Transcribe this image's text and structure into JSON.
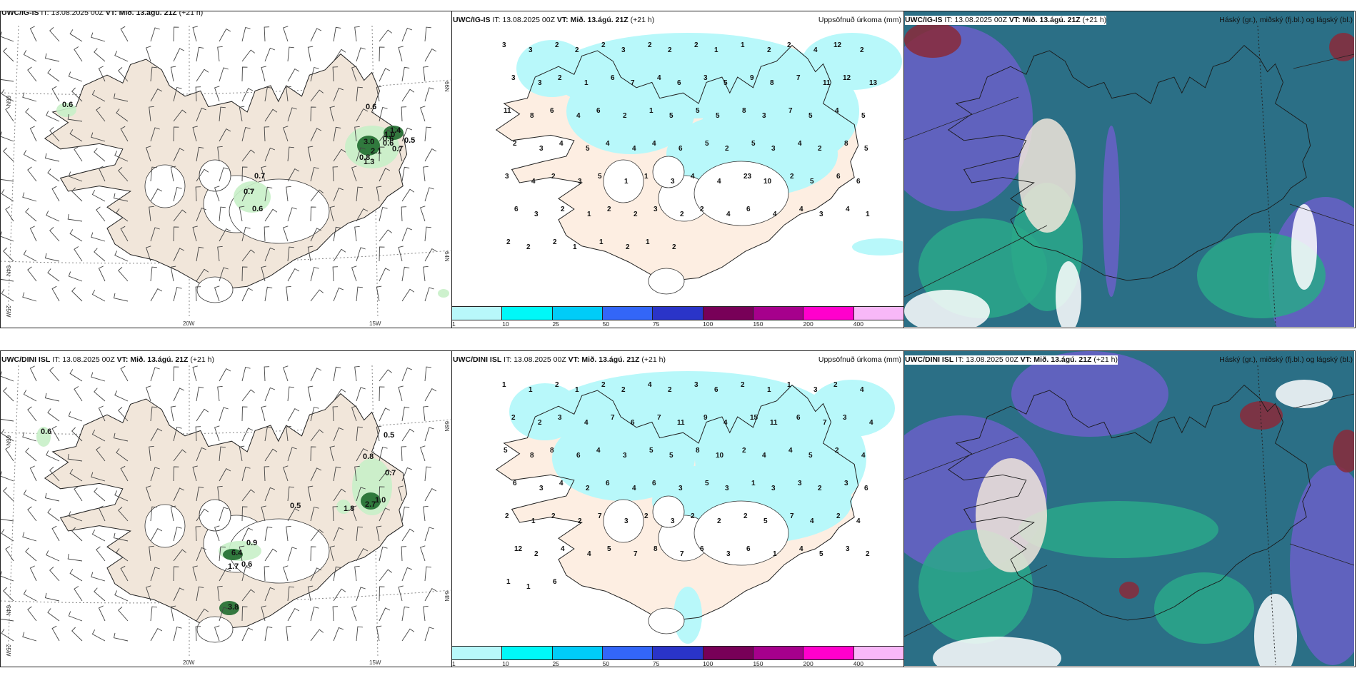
{
  "panels": {
    "p1": {
      "model": "UWC/IG-IS",
      "it_label": "IT:",
      "it_value": "13.08.2025 00Z",
      "vt_label": "VT:",
      "vt_value": "Mið. 13.ágú. 21Z",
      "lead": "(+21",
      "lead_cont": "h)",
      "lon_labels": [
        "20W",
        "15W"
      ],
      "lat_labels": [
        "66N",
        "64N",
        "25W"
      ],
      "precip_labels": [
        "0.6",
        "0.6",
        "1.4",
        "1.0",
        "3.0",
        "0.5",
        "0.6",
        "2.1",
        "0.7",
        "0.8",
        "1.3",
        "0.6",
        "0.7",
        "0.7",
        "0.6"
      ]
    },
    "p2": {
      "model": "UWC/IG-IS",
      "it_label": "IT:",
      "it_value": "13.08.2025 00Z",
      "vt_label": "VT:",
      "vt_value": "Mið. 13.ágú. 21Z",
      "lead": "(+21 h)",
      "field_title": "Uppsöfnuð úrkoma (mm)",
      "values": [
        "3",
        "3",
        "2",
        "2",
        "2",
        "3",
        "2",
        "2",
        "2",
        "1",
        "1",
        "2",
        "2",
        "4",
        "12",
        "2",
        "3",
        "3",
        "2",
        "1",
        "6",
        "7",
        "4",
        "6",
        "3",
        "5",
        "9",
        "8",
        "7",
        "11",
        "12",
        "13",
        "11",
        "8",
        "6",
        "4",
        "6",
        "2",
        "1",
        "5",
        "5",
        "5",
        "8",
        "3",
        "7",
        "5",
        "4",
        "5",
        "2",
        "3",
        "4",
        "5",
        "4",
        "4",
        "4",
        "6",
        "5",
        "2",
        "5",
        "3",
        "4",
        "2",
        "8",
        "5",
        "3",
        "4",
        "2",
        "3",
        "5",
        "1",
        "1",
        "3",
        "4",
        "4",
        "23",
        "10",
        "2",
        "5",
        "6",
        "6",
        "6",
        "3",
        "2",
        "1",
        "2",
        "2",
        "3",
        "2",
        "2",
        "4",
        "6",
        "4",
        "4",
        "3",
        "4",
        "1",
        "2",
        "2",
        "2",
        "1",
        "1",
        "2",
        "1",
        "2"
      ]
    },
    "p3": {
      "model": "UWC/IG-IS",
      "it_label": "IT:",
      "it_value": "13.08.2025 00Z",
      "vt_label": "VT:",
      "vt_value": "Mið. 13.ágú. 21Z",
      "lead": "(+21 h)",
      "field_title": "Háský (gr.), miðský (fj.bl.) og lágský (bl.)"
    },
    "p4": {
      "model": "UWC/DINI ISL",
      "it_label": "IT:",
      "it_value": "13.08.2025 00Z",
      "vt_label": "VT:",
      "vt_value": "Mið. 13.ágú. 21Z",
      "lead": "(+21 h)",
      "lon_labels": [
        "20W",
        "15W"
      ],
      "lat_labels": [
        "66N",
        "64N",
        "25W"
      ],
      "precip_labels": [
        "0.6",
        "0.5",
        "0.8",
        "0.7",
        "1.0",
        "2.7",
        "1.8",
        "0.5",
        "0.9",
        "6.4",
        "1.7",
        "0.6",
        "3.8"
      ]
    },
    "p5": {
      "model": "UWC/DINI ISL",
      "it_label": "IT:",
      "it_value": "13.08.2025 00Z",
      "vt_label": "VT:",
      "vt_value": "Mið. 13.ágú. 21Z",
      "lead": "(+21 h)",
      "field_title": "Uppsöfnuð úrkoma (mm)",
      "values": [
        "1",
        "1",
        "2",
        "1",
        "2",
        "2",
        "4",
        "2",
        "3",
        "6",
        "2",
        "1",
        "1",
        "3",
        "2",
        "4",
        "2",
        "2",
        "3",
        "4",
        "7",
        "6",
        "7",
        "11",
        "9",
        "4",
        "15",
        "11",
        "6",
        "7",
        "3",
        "4",
        "5",
        "8",
        "8",
        "6",
        "4",
        "3",
        "5",
        "5",
        "8",
        "10",
        "2",
        "4",
        "4",
        "5",
        "2",
        "4",
        "6",
        "3",
        "4",
        "2",
        "6",
        "4",
        "6",
        "3",
        "5",
        "3",
        "1",
        "3",
        "3",
        "2",
        "3",
        "6",
        "2",
        "1",
        "2",
        "2",
        "7",
        "3",
        "2",
        "3",
        "2",
        "2",
        "2",
        "5",
        "7",
        "4",
        "2",
        "4",
        "12",
        "2",
        "4",
        "4",
        "5",
        "7",
        "8",
        "7",
        "6",
        "3",
        "6",
        "1",
        "4",
        "5",
        "3",
        "2",
        "1",
        "1",
        "6"
      ]
    },
    "p6": {
      "model": "UWC/DINI ISL",
      "it_label": "IT:",
      "it_value": "13.08.2025 00Z",
      "vt_label": "VT:",
      "vt_value": "Mið. 13.ágú. 21Z",
      "lead": "(+21 h)",
      "field_title": "Háský (gr.), miðský (fj.bl.) og lágský (bl.)"
    }
  },
  "colorbar": {
    "ticks": [
      "1",
      "10",
      "25",
      "50",
      "75",
      "100",
      "150",
      "200",
      "400"
    ],
    "colors": [
      "#b8f8fa",
      "#00f8f8",
      "#00ccf8",
      "#3366f8",
      "#2a34c8",
      "#780058",
      "#a6008c",
      "#ff00cc",
      "#f8b8f8"
    ]
  },
  "colors": {
    "land": "#f1e6da",
    "land_precip": "#fdeee2",
    "precip_light": "#b8f8fa",
    "green_light": "#c8f0c8",
    "green_dark": "#1f6b2e",
    "cloud_high": "#2aa88a",
    "cloud_mid": "#2b6f86",
    "cloud_low": "#6a60c8",
    "cloud_red": "#8a2a3a"
  }
}
